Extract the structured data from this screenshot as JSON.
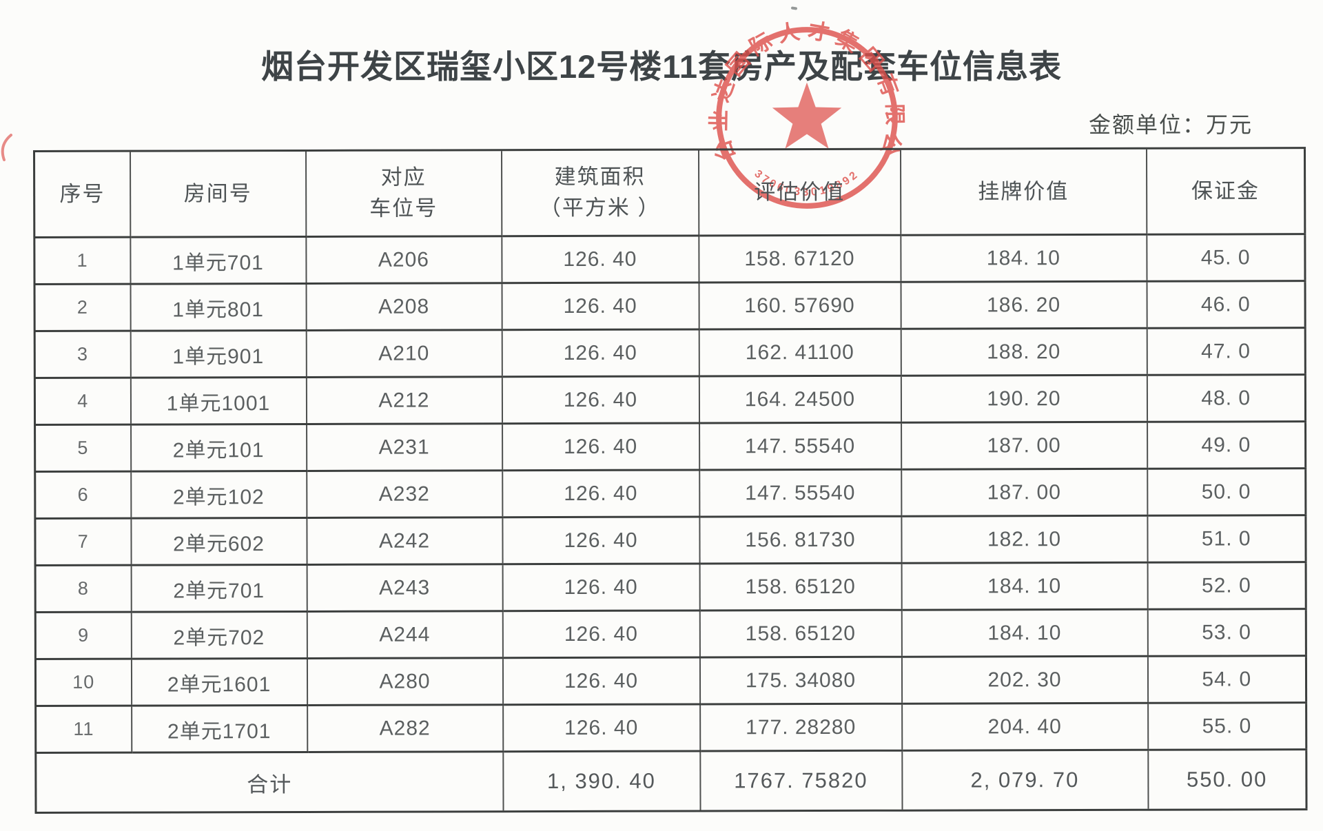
{
  "page": {
    "title": "烟台开发区瑞玺小区12号楼11套房产及配套车位信息表",
    "unit_note": "金额单位：万元"
  },
  "stamp": {
    "company": "烟台业达国际人才集团有限公司",
    "serial": "3706033019892",
    "color": "#dd4f4a"
  },
  "table": {
    "headers": [
      "序号",
      "房间号",
      "对应\n车位号",
      "建筑面积\n（平方米 ）",
      "评估价值",
      "挂牌价值",
      "保证金"
    ],
    "rows": [
      [
        "1",
        "1单元701",
        "A206",
        "126. 40",
        "158. 67120",
        "184. 10",
        "45. 0"
      ],
      [
        "2",
        "1单元801",
        "A208",
        "126. 40",
        "160. 57690",
        "186. 20",
        "46. 0"
      ],
      [
        "3",
        "1单元901",
        "A210",
        "126. 40",
        "162. 41100",
        "188. 20",
        "47. 0"
      ],
      [
        "4",
        "1单元1001",
        "A212",
        "126. 40",
        "164. 24500",
        "190. 20",
        "48. 0"
      ],
      [
        "5",
        "2单元101",
        "A231",
        "126. 40",
        "147. 55540",
        "187. 00",
        "49. 0"
      ],
      [
        "6",
        "2单元102",
        "A232",
        "126. 40",
        "147. 55540",
        "187. 00",
        "50. 0"
      ],
      [
        "7",
        "2单元602",
        "A242",
        "126. 40",
        "156. 81730",
        "182. 10",
        "51. 0"
      ],
      [
        "8",
        "2单元701",
        "A243",
        "126. 40",
        "158. 65120",
        "184. 10",
        "52. 0"
      ],
      [
        "9",
        "2单元702",
        "A244",
        "126. 40",
        "158. 65120",
        "184. 10",
        "53. 0"
      ],
      [
        "10",
        "2单元1601",
        "A280",
        "126. 40",
        "175. 34080",
        "202. 30",
        "54. 0"
      ],
      [
        "11",
        "2单元1701",
        "A282",
        "126. 40",
        "177. 28280",
        "204. 40",
        "55. 0"
      ]
    ],
    "total": {
      "label": "合计",
      "values": [
        "1, 390. 40",
        "1767. 75820",
        "2, 079. 70",
        "550. 00"
      ]
    }
  }
}
